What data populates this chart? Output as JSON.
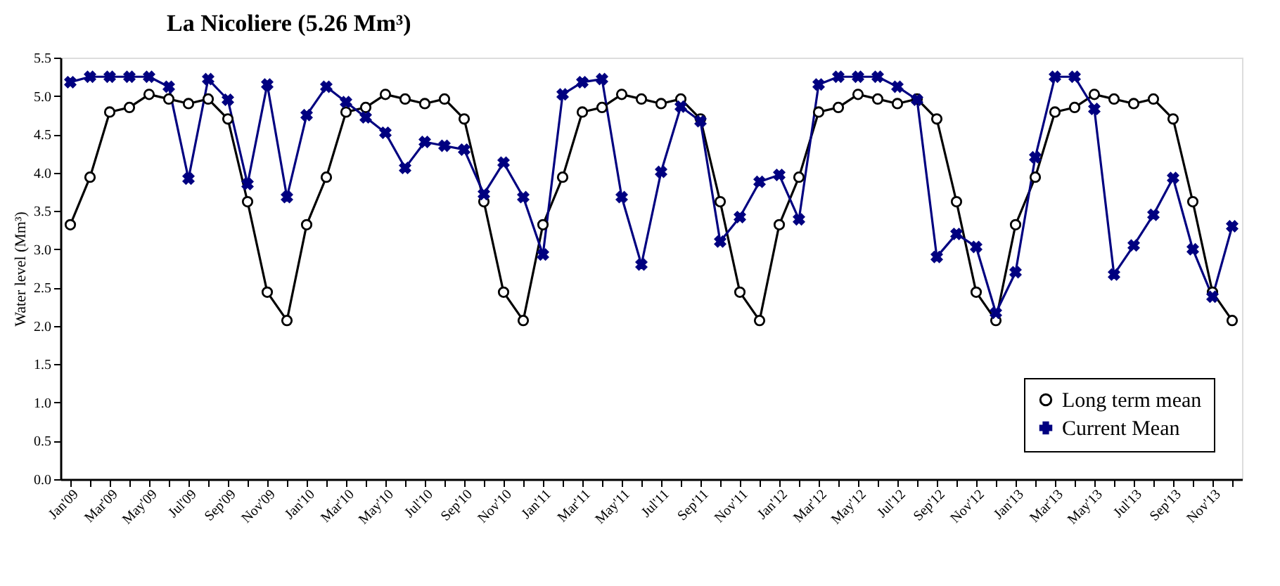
{
  "chart_data": {
    "type": "line",
    "title": "La Nicoliere (5.26 Mm³)",
    "ylabel": "Water level (Mm³)",
    "categories": [
      "Jan'09",
      null,
      "Mar'09",
      null,
      "May'09",
      null,
      "Jul'09",
      null,
      "Sep'09",
      null,
      "Nov'09",
      null,
      "Jan'10",
      null,
      "Mar'10",
      null,
      "May'10",
      null,
      "Jul'10",
      null,
      "Sep'10",
      null,
      "Nov'10",
      null,
      "Jan'11",
      null,
      "Mar'11",
      null,
      "May'11",
      null,
      "Jul'11",
      null,
      "Sep'11",
      null,
      "Nov'11",
      null,
      "Jan'12",
      null,
      "Mar'12",
      null,
      "May'12",
      null,
      "Jul'12",
      null,
      "Sep'12",
      null,
      "Nov'12",
      null,
      "Jan'13",
      null,
      "Mar'13",
      null,
      "May'13",
      null,
      "Jul'13",
      null,
      "Sep'13",
      null,
      "Nov'13",
      null
    ],
    "series": [
      {
        "name": "Long term mean",
        "color": "#000000",
        "marker": "circle",
        "values": [
          3.32,
          3.94,
          4.79,
          4.85,
          5.02,
          4.96,
          4.9,
          4.96,
          4.7,
          3.62,
          2.44,
          2.07,
          3.32,
          3.94,
          4.79,
          4.85,
          5.02,
          4.96,
          4.9,
          4.96,
          4.7,
          3.62,
          2.44,
          2.07,
          3.32,
          3.94,
          4.79,
          4.85,
          5.02,
          4.96,
          4.9,
          4.96,
          4.7,
          3.62,
          2.44,
          2.07,
          3.32,
          3.94,
          4.79,
          4.85,
          5.02,
          4.96,
          4.9,
          4.96,
          4.7,
          3.62,
          2.44,
          2.07,
          3.32,
          3.94,
          4.79,
          4.85,
          5.02,
          4.96,
          4.9,
          4.96,
          4.7,
          3.62,
          2.44,
          2.07
        ]
      },
      {
        "name": "Current Mean",
        "color": "#000080",
        "marker": "cross",
        "values": [
          5.18,
          5.25,
          5.25,
          5.25,
          5.25,
          5.12,
          3.92,
          5.22,
          4.95,
          3.85,
          5.15,
          3.68,
          4.75,
          5.12,
          4.92,
          4.72,
          4.52,
          4.06,
          4.4,
          4.35,
          4.3,
          3.72,
          4.13,
          3.68,
          2.93,
          5.02,
          5.18,
          5.22,
          3.68,
          2.8,
          4.01,
          4.86,
          4.67,
          3.1,
          3.42,
          3.88,
          3.97,
          3.39,
          5.15,
          5.25,
          5.25,
          5.25,
          5.12,
          4.95,
          2.9,
          3.2,
          3.03,
          2.17,
          2.7,
          4.2,
          5.25,
          5.25,
          4.83,
          2.67,
          3.05,
          3.45,
          3.93,
          3.0,
          2.38,
          3.3
        ]
      }
    ],
    "ylim": [
      0,
      5.5
    ],
    "yticks": [
      {
        "value": 0,
        "label": "0.0"
      },
      0.5,
      {
        "value": 1,
        "label": "1.0"
      },
      1.5,
      {
        "value": 2,
        "label": "2.0"
      },
      2.5,
      {
        "value": 3,
        "label": "3.0"
      },
      3.5,
      {
        "value": 4,
        "label": "4.0"
      },
      4.5,
      {
        "value": 5,
        "label": "5.0"
      },
      5.5
    ],
    "legend": "bottom right",
    "grid": false,
    "line_style": "solid"
  }
}
